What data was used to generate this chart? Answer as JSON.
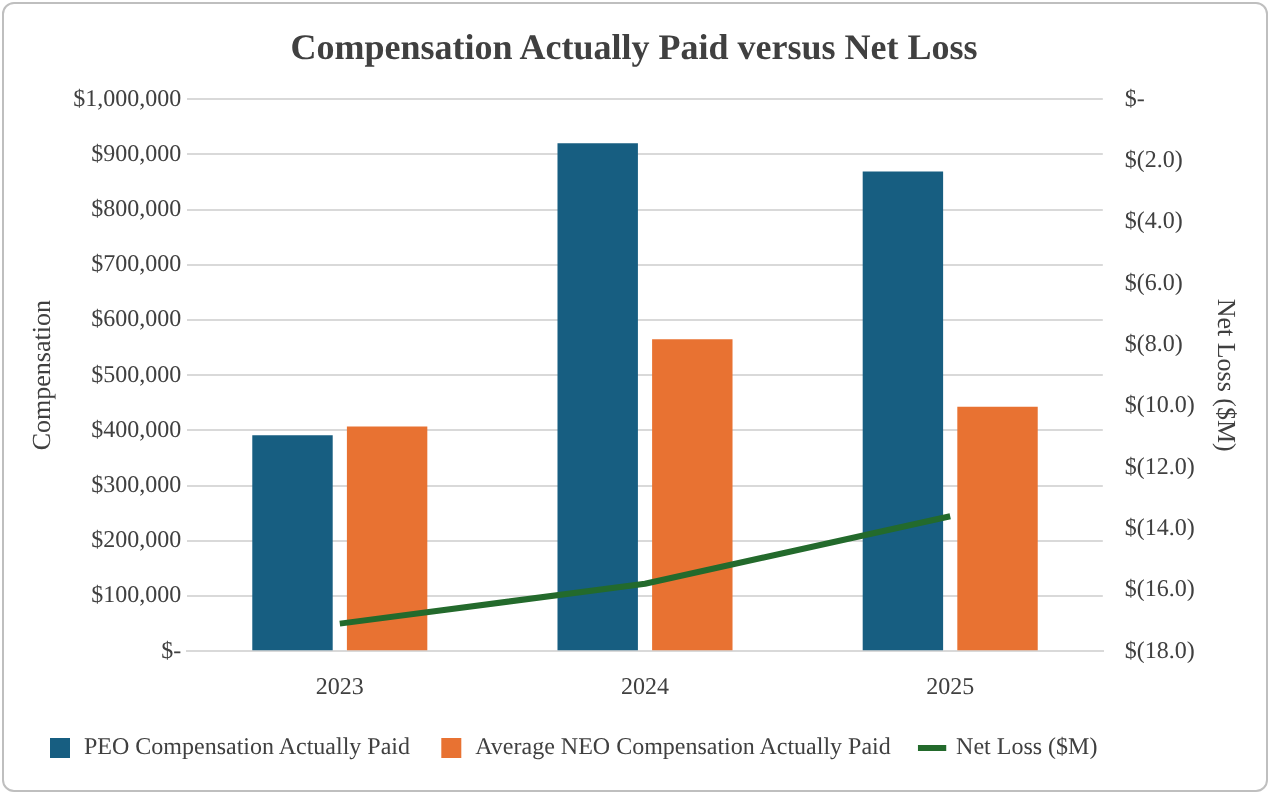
{
  "chart_data": {
    "type": "bar",
    "title": "Compensation Actually Paid versus Net Loss",
    "ylabel": "Compensation",
    "y2label": "Net Loss ($M)",
    "categories": [
      "2023",
      "2024",
      "2025"
    ],
    "series": [
      {
        "name": "PEO Compensation Actually Paid",
        "color": "#175e81",
        "values": [
          391000,
          920000,
          869000
        ]
      },
      {
        "name": "Average NEO Compensation Actually Paid",
        "color": "#e87232",
        "values": [
          407000,
          565000,
          443000
        ]
      },
      {
        "name": "Net Loss ($M)",
        "type": "line",
        "axis": "y2",
        "color": "#236a2c",
        "values": [
          -17.1,
          -15.8,
          -13.6
        ]
      }
    ],
    "ylim": [
      0,
      1000000
    ],
    "yticks": [
      {
        "value": 0,
        "label": "$-"
      },
      {
        "value": 100000,
        "label": "$100,000"
      },
      {
        "value": 200000,
        "label": "$200,000"
      },
      {
        "value": 300000,
        "label": "$300,000"
      },
      {
        "value": 400000,
        "label": "$400,000"
      },
      {
        "value": 500000,
        "label": "$500,000"
      },
      {
        "value": 600000,
        "label": "$600,000"
      },
      {
        "value": 700000,
        "label": "$700,000"
      },
      {
        "value": 800000,
        "label": "$800,000"
      },
      {
        "value": 900000,
        "label": "$900,000"
      },
      {
        "value": 1000000,
        "label": "$1,000,000"
      }
    ],
    "y2lim": [
      -18,
      0
    ],
    "y2ticks": [
      {
        "value": -18,
        "label": "$(18.0)"
      },
      {
        "value": -16,
        "label": "$(16.0)"
      },
      {
        "value": -14,
        "label": "$(14.0)"
      },
      {
        "value": -12,
        "label": "$(12.0)"
      },
      {
        "value": -10,
        "label": "$(10.0)"
      },
      {
        "value": -8,
        "label": "$(8.0)"
      },
      {
        "value": -6,
        "label": "$(6.0)"
      },
      {
        "value": -4,
        "label": "$(4.0)"
      },
      {
        "value": -2,
        "label": "$(2.0)"
      },
      {
        "value": 0,
        "label": "$-"
      }
    ],
    "grid": "y",
    "legend": "bottom",
    "marker": "none",
    "line_style": "solid"
  }
}
